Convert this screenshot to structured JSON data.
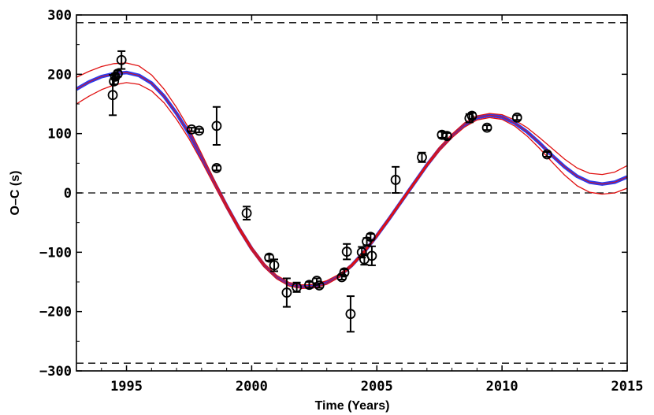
{
  "chart_data": {
    "type": "scatter",
    "xlabel": "Time (Years)",
    "ylabel": "O–C (s)",
    "xlim": [
      1993,
      2015
    ],
    "ylim": [
      -300,
      300
    ],
    "x_ticks": [
      1995,
      2000,
      2005,
      2010,
      2015
    ],
    "x_tick_labels": [
      "1995",
      "2000",
      "2005",
      "2010",
      "2015"
    ],
    "y_ticks": [
      300,
      200,
      100,
      0,
      -100,
      -200,
      -300
    ],
    "y_tick_labels": [
      "300",
      "200",
      "100",
      "0",
      "−100",
      "−200",
      "−300"
    ],
    "reference_lines": [
      {
        "name": "upper-limit-line",
        "y": 287,
        "style": "dashed"
      },
      {
        "name": "zero-line",
        "y": 0,
        "style": "dashed"
      },
      {
        "name": "lower-limit-line",
        "y": -287,
        "style": "dashed"
      }
    ],
    "series": [
      {
        "name": "observations",
        "kind": "points_with_errors",
        "marker": "open-circle",
        "color": "#000000",
        "points": [
          {
            "x": 1994.45,
            "y": 165,
            "err": 34
          },
          {
            "x": 1994.5,
            "y": 188,
            "err": 5
          },
          {
            "x": 1994.55,
            "y": 196,
            "err": 5
          },
          {
            "x": 1994.65,
            "y": 201,
            "err": 5
          },
          {
            "x": 1994.8,
            "y": 224,
            "err": 15
          },
          {
            "x": 1997.6,
            "y": 107,
            "err": 3
          },
          {
            "x": 1997.9,
            "y": 105,
            "err": 3
          },
          {
            "x": 1998.6,
            "y": 113,
            "err": 32
          },
          {
            "x": 1998.6,
            "y": 42,
            "err": 4
          },
          {
            "x": 1999.8,
            "y": -34,
            "err": 11
          },
          {
            "x": 2000.7,
            "y": -109,
            "err": 5
          },
          {
            "x": 2000.9,
            "y": -122,
            "err": 10
          },
          {
            "x": 2001.4,
            "y": -168,
            "err": 24
          },
          {
            "x": 2001.8,
            "y": -159,
            "err": 8
          },
          {
            "x": 2002.3,
            "y": -155,
            "err": 5
          },
          {
            "x": 2002.6,
            "y": -148,
            "err": 4
          },
          {
            "x": 2002.7,
            "y": -156,
            "err": 4
          },
          {
            "x": 2003.6,
            "y": -142,
            "err": 4
          },
          {
            "x": 2003.7,
            "y": -134,
            "err": 5
          },
          {
            "x": 2003.8,
            "y": -99,
            "err": 13
          },
          {
            "x": 2003.95,
            "y": -204,
            "err": 30
          },
          {
            "x": 2004.4,
            "y": -100,
            "err": 9
          },
          {
            "x": 2004.5,
            "y": -112,
            "err": 9
          },
          {
            "x": 2004.6,
            "y": -82,
            "err": 6
          },
          {
            "x": 2004.75,
            "y": -74,
            "err": 5
          },
          {
            "x": 2004.8,
            "y": -106,
            "err": 16
          },
          {
            "x": 2005.75,
            "y": 22,
            "err": 22
          },
          {
            "x": 2006.8,
            "y": 60,
            "err": 8
          },
          {
            "x": 2007.6,
            "y": 98,
            "err": 5
          },
          {
            "x": 2007.8,
            "y": 96,
            "err": 5
          },
          {
            "x": 2008.7,
            "y": 126,
            "err": 7
          },
          {
            "x": 2008.8,
            "y": 130,
            "err": 5
          },
          {
            "x": 2009.4,
            "y": 110,
            "err": 4
          },
          {
            "x": 2010.6,
            "y": 127,
            "err": 4
          },
          {
            "x": 2011.8,
            "y": 65,
            "err": 4
          }
        ]
      },
      {
        "name": "best-fit model",
        "kind": "curve",
        "color": "#2a3cf0",
        "x": [
          1993,
          1993.5,
          1994,
          1994.5,
          1995,
          1995.5,
          1996,
          1996.5,
          1997,
          1997.5,
          1998,
          1998.5,
          1999,
          1999.5,
          2000,
          2000.5,
          2001,
          2001.5,
          2002,
          2002.5,
          2003,
          2003.5,
          2004,
          2004.5,
          2005,
          2005.5,
          2006,
          2006.5,
          2007,
          2007.5,
          2008,
          2008.5,
          2009,
          2009.5,
          2010,
          2010.5,
          2011,
          2011.5,
          2012,
          2012.5,
          2013,
          2013.5,
          2014,
          2014.5,
          2015
        ],
        "values": [
          175,
          187,
          196,
          201,
          203,
          198,
          185,
          163,
          134,
          100,
          60,
          18,
          -22,
          -60,
          -94,
          -122,
          -142,
          -154,
          -158,
          -157,
          -151,
          -140,
          -122,
          -99,
          -72,
          -43,
          -13,
          17,
          47,
          74,
          96,
          115,
          127,
          131,
          128,
          118,
          103,
          84,
          63,
          44,
          28,
          18,
          15,
          18,
          27
        ]
      },
      {
        "name": "model upper bound",
        "kind": "curve",
        "color": "#e01010",
        "x": [
          1993,
          1993.5,
          1994,
          1994.5,
          1995,
          1995.5,
          1996,
          1996.5,
          1997,
          1997.5,
          1998,
          1998.5,
          1999,
          1999.5,
          2000,
          2000.5,
          2001,
          2001.5,
          2002,
          2002.5,
          2003,
          2003.5,
          2004,
          2004.5,
          2005,
          2005.5,
          2006,
          2006.5,
          2007,
          2007.5,
          2008,
          2008.5,
          2009,
          2009.5,
          2010,
          2010.5,
          2011,
          2011.5,
          2012,
          2012.5,
          2013,
          2013.5,
          2014,
          2014.5,
          2015
        ],
        "values": [
          195,
          205,
          213,
          218,
          219,
          214,
          199,
          175,
          144,
          108,
          66,
          22,
          -19,
          -57,
          -91,
          -119,
          -139,
          -151,
          -155,
          -154,
          -148,
          -137,
          -120,
          -97,
          -70,
          -41,
          -11,
          19,
          49,
          77,
          99,
          118,
          130,
          134,
          132,
          123,
          110,
          93,
          75,
          57,
          42,
          33,
          31,
          35,
          46
        ]
      },
      {
        "name": "model lower bound",
        "kind": "curve",
        "color": "#e01010",
        "x": [
          1993,
          1993.5,
          1994,
          1994.5,
          1995,
          1995.5,
          1996,
          1996.5,
          1997,
          1997.5,
          1998,
          1998.5,
          1999,
          1999.5,
          2000,
          2000.5,
          2001,
          2001.5,
          2002,
          2002.5,
          2003,
          2003.5,
          2004,
          2004.5,
          2005,
          2005.5,
          2006,
          2006.5,
          2007,
          2007.5,
          2008,
          2008.5,
          2009,
          2009.5,
          2010,
          2010.5,
          2011,
          2011.5,
          2012,
          2012.5,
          2013,
          2013.5,
          2014,
          2014.5,
          2015
        ],
        "values": [
          150,
          163,
          174,
          182,
          186,
          183,
          172,
          152,
          124,
          91,
          53,
          13,
          -26,
          -63,
          -97,
          -125,
          -145,
          -157,
          -161,
          -160,
          -154,
          -142,
          -124,
          -101,
          -74,
          -45,
          -15,
          15,
          45,
          71,
          93,
          111,
          123,
          127,
          124,
          113,
          96,
          75,
          52,
          30,
          12,
          1,
          -2,
          0,
          8
        ]
      }
    ]
  }
}
